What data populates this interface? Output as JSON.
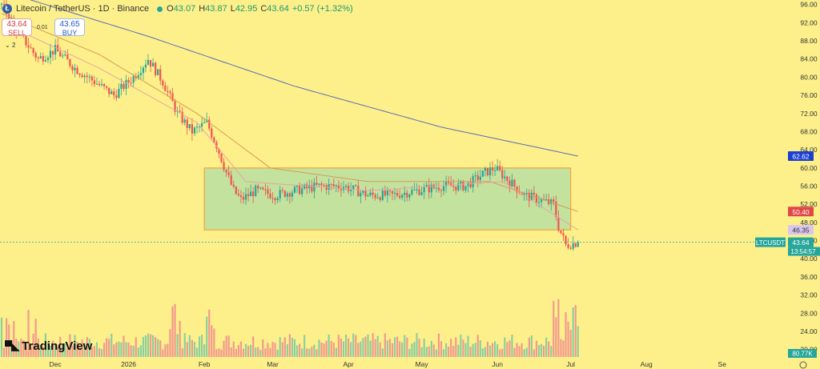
{
  "header": {
    "coin_icon": "litecoin-icon",
    "symbol_line": "Litecoin / TetherUS · 1D · Binance",
    "open_label": "O",
    "open": "43.07",
    "high_label": "H",
    "high": "43.87",
    "low_label": "L",
    "low": "42.95",
    "close_label": "C",
    "close": "43.64",
    "change": "+0.57 (+1.32%)"
  },
  "trade": {
    "sell_price": "43.64",
    "sell_label": "SELL",
    "buy_price": "43.65",
    "buy_label": "BUY",
    "spread": "0.01",
    "indicator_count": "2"
  },
  "brand": {
    "name": "TradingView",
    "logo_icon": "tradingview-logo-icon"
  },
  "colors": {
    "background": "#fdf08a",
    "up": "#26a69a",
    "down": "#ef5350",
    "zone_fill": "#b7dfa0",
    "zone_border": "#f2a53a",
    "ma_fast": "#e8a5a0",
    "ma_mid": "#d99a5a",
    "ma_slow": "#5d6bb5"
  },
  "chart_data": {
    "type": "candlestick",
    "y_ticks": [
      "96.00",
      "92.00",
      "88.00",
      "84.00",
      "80.00",
      "76.00",
      "72.00",
      "68.00",
      "64.00",
      "60.00",
      "56.00",
      "52.00",
      "48.00",
      "44.00",
      "40.00",
      "36.00",
      "32.00",
      "28.00",
      "24.00",
      "20.00"
    ],
    "x_labels": [
      "Dec",
      "2026",
      "Feb",
      "Mar",
      "Apr",
      "May",
      "Jun",
      "Jul",
      "Aug",
      "Se"
    ],
    "ylim": [
      18,
      97
    ],
    "price_tags": [
      {
        "value": "62.62",
        "kind": "ma-slow"
      },
      {
        "value": "50.40",
        "kind": "ma-mid"
      },
      {
        "value": "46.35",
        "kind": "ma-fast"
      },
      {
        "value": "43.64",
        "kind": "last"
      }
    ],
    "last_symbol": "LTCUSDT",
    "countdown": "13:54:57",
    "volume_label": "80.77K",
    "zone": {
      "x_start": "2026-02-01",
      "x_end": "2026-06-27",
      "y_low": 46.35,
      "y_high": 60.0
    },
    "anchors": [
      {
        "d": 0,
        "v": 96
      },
      {
        "d": 8,
        "v": 89
      },
      {
        "d": 15,
        "v": 84
      },
      {
        "d": 22,
        "v": 86
      },
      {
        "d": 30,
        "v": 82
      },
      {
        "d": 38,
        "v": 79
      },
      {
        "d": 46,
        "v": 76
      },
      {
        "d": 54,
        "v": 80
      },
      {
        "d": 60,
        "v": 84
      },
      {
        "d": 66,
        "v": 79
      },
      {
        "d": 72,
        "v": 72
      },
      {
        "d": 78,
        "v": 68
      },
      {
        "d": 84,
        "v": 70
      },
      {
        "d": 88,
        "v": 65
      },
      {
        "d": 92,
        "v": 59
      },
      {
        "d": 95,
        "v": 55
      },
      {
        "d": 98,
        "v": 53
      },
      {
        "d": 104,
        "v": 55
      },
      {
        "d": 112,
        "v": 54
      },
      {
        "d": 120,
        "v": 55
      },
      {
        "d": 130,
        "v": 56
      },
      {
        "d": 140,
        "v": 56
      },
      {
        "d": 150,
        "v": 54
      },
      {
        "d": 160,
        "v": 54
      },
      {
        "d": 170,
        "v": 55
      },
      {
        "d": 180,
        "v": 56
      },
      {
        "d": 190,
        "v": 56
      },
      {
        "d": 198,
        "v": 59
      },
      {
        "d": 202,
        "v": 60
      },
      {
        "d": 208,
        "v": 57
      },
      {
        "d": 214,
        "v": 54
      },
      {
        "d": 220,
        "v": 53
      },
      {
        "d": 226,
        "v": 52
      },
      {
        "d": 228,
        "v": 47
      },
      {
        "d": 231,
        "v": 43
      },
      {
        "d": 236,
        "v": 43.6
      }
    ],
    "ma_slow_pts": [
      {
        "d": 0,
        "v": 99
      },
      {
        "d": 60,
        "v": 89
      },
      {
        "d": 120,
        "v": 78
      },
      {
        "d": 180,
        "v": 69
      },
      {
        "d": 236,
        "v": 62.62
      }
    ],
    "ma_mid_pts": [
      {
        "d": 0,
        "v": 94
      },
      {
        "d": 40,
        "v": 85
      },
      {
        "d": 80,
        "v": 72
      },
      {
        "d": 110,
        "v": 60
      },
      {
        "d": 150,
        "v": 57
      },
      {
        "d": 200,
        "v": 57
      },
      {
        "d": 236,
        "v": 50.4
      }
    ],
    "ma_fast_pts": [
      {
        "d": 0,
        "v": 92
      },
      {
        "d": 40,
        "v": 82
      },
      {
        "d": 80,
        "v": 70
      },
      {
        "d": 100,
        "v": 57
      },
      {
        "d": 150,
        "v": 55
      },
      {
        "d": 205,
        "v": 57
      },
      {
        "d": 236,
        "v": 46.35
      }
    ]
  }
}
